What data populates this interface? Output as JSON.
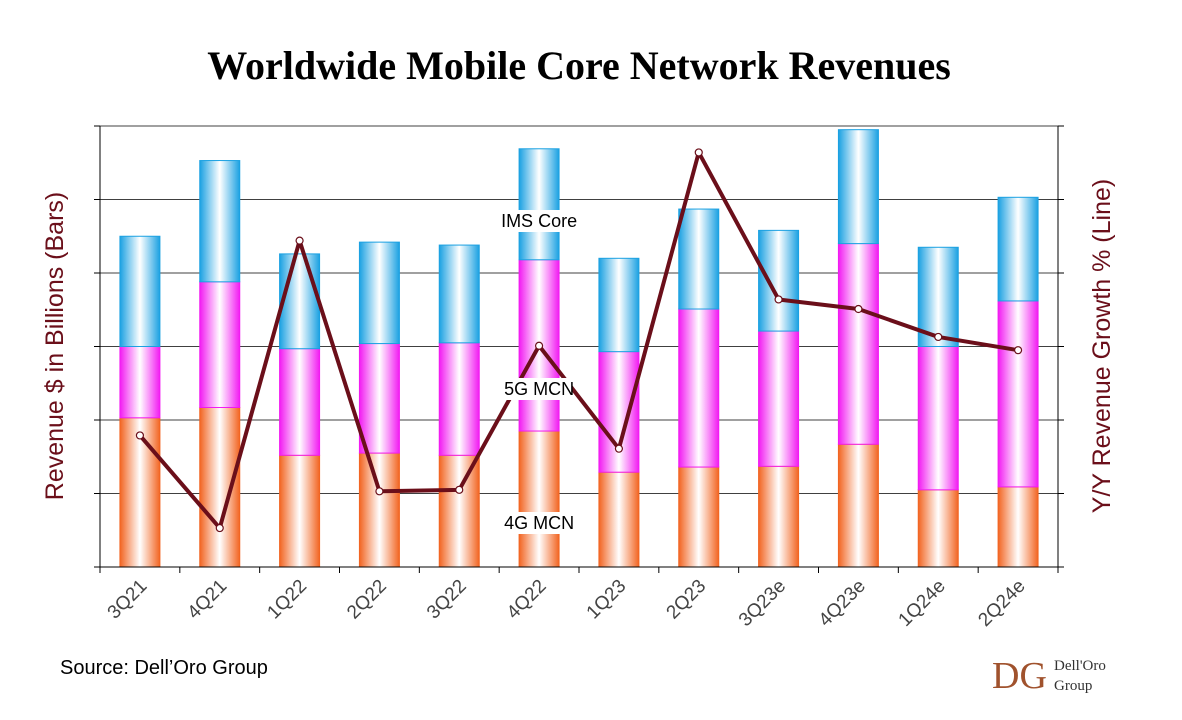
{
  "chart_data": {
    "type": "bar",
    "title": "Worldwide Mobile Core Network Revenues",
    "ylabel": "Revenue $ in Billions (Bars)",
    "y2label": "Y/Y Revenue Growth % (Line)",
    "categories": [
      "3Q21",
      "4Q21",
      "1Q22",
      "2Q22",
      "3Q22",
      "4Q22",
      "1Q23",
      "2Q23",
      "3Q23e",
      "4Q23e",
      "1Q24e",
      "2Q24e"
    ],
    "stacked": true,
    "ylim": [
      0,
      6
    ],
    "y2lim": [
      0,
      6
    ],
    "grid": true,
    "series": [
      {
        "name": "4G MCN",
        "values": [
          2.03,
          2.17,
          1.52,
          1.55,
          1.52,
          1.85,
          1.29,
          1.36,
          1.37,
          1.67,
          1.05,
          1.09
        ]
      },
      {
        "name": "5G MCN",
        "values": [
          0.97,
          1.71,
          1.45,
          1.49,
          1.53,
          2.33,
          1.64,
          2.15,
          1.84,
          2.73,
          1.95,
          2.53
        ]
      },
      {
        "name": "IMS Core",
        "values": [
          1.5,
          1.65,
          1.29,
          1.38,
          1.33,
          1.51,
          1.27,
          1.36,
          1.37,
          1.55,
          1.35,
          1.41
        ]
      }
    ],
    "line": {
      "values": [
        1.79,
        0.53,
        4.44,
        1.03,
        1.05,
        3.01,
        1.61,
        5.64,
        3.64,
        3.51,
        3.13,
        2.95
      ]
    },
    "segment_labels": [
      "IMS Core",
      "5G MCN",
      "4G MCN"
    ],
    "colors": {
      "4G MCN": "#f26522",
      "5G MCN": "#f21bf2",
      "IMS Core": "#1ba1e2",
      "line": "#6b0f1a",
      "axis_title": "#6b0f1a"
    }
  },
  "source": "Source: Dell’Oro Group",
  "logo": {
    "monogram": "DG",
    "line1": "Dell'Oro",
    "line2": "Group"
  }
}
